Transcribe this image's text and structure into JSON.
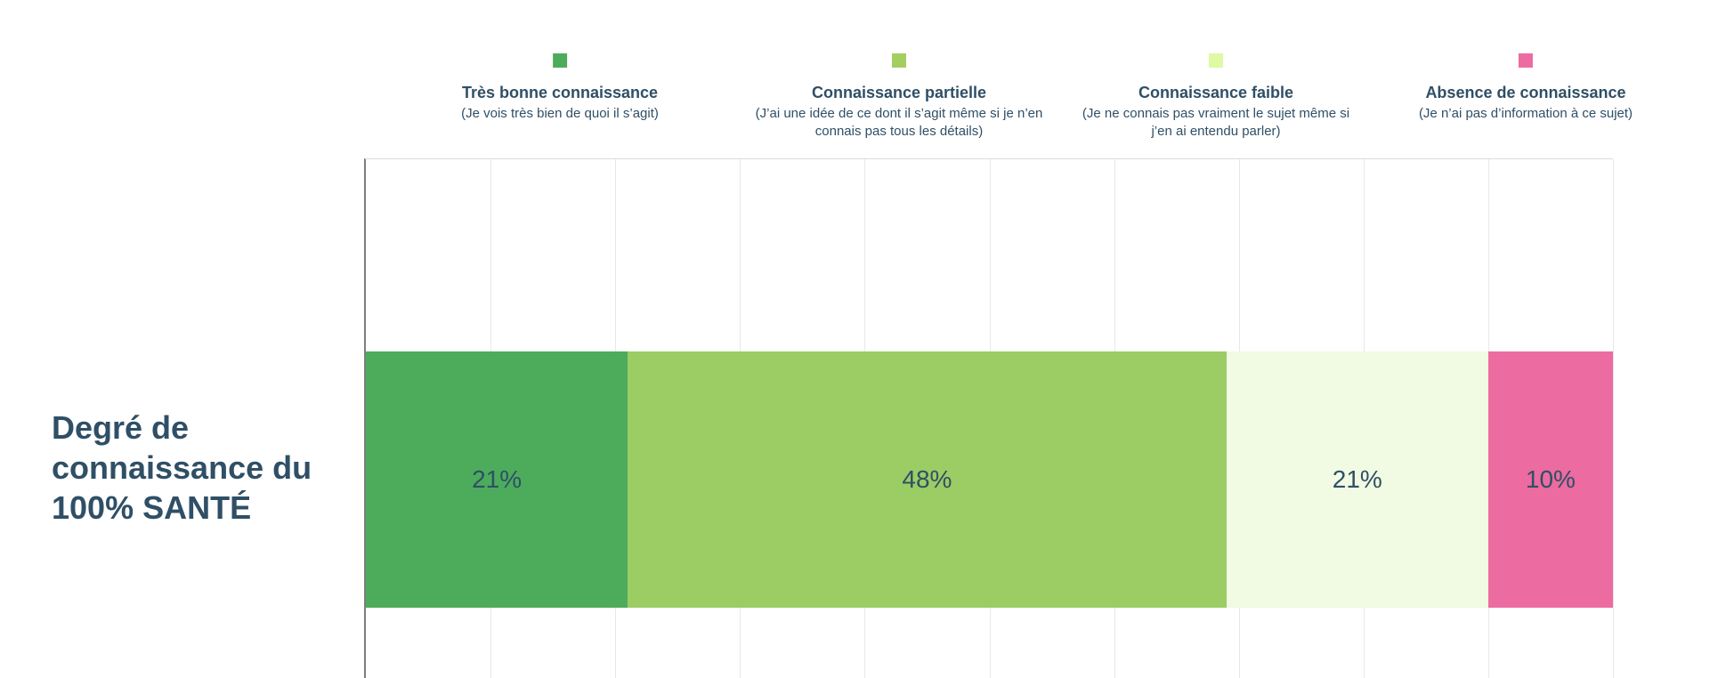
{
  "chart_data": {
    "type": "bar",
    "orientation": "horizontal-stacked",
    "title": "",
    "categories": [
      "Degré de connaissance du 100% SANTÉ"
    ],
    "series": [
      {
        "name": "Très bonne connaissance",
        "description": "(Je vois très bien de quoi il s’agit)",
        "values": [
          21
        ],
        "data_label": "21%",
        "color": "#4CAC5C",
        "swatch_color": "#4CAC5C"
      },
      {
        "name": "Connaissance partielle",
        "description": "(J’ai une idée de ce dont il s’agit même si je n’en connais pas tous les détails)",
        "values": [
          48
        ],
        "data_label": "48%",
        "color": "#9CCC64",
        "swatch_color": "#A3CE62"
      },
      {
        "name": "Connaissance faible",
        "description": "(Je ne connais pas vraiment le sujet même si j’en ai entendu parler)",
        "values": [
          21
        ],
        "data_label": "21%",
        "color": "#F1FAE2",
        "swatch_color": "#DEFAA3"
      },
      {
        "name": "Absence de connaissance",
        "description": "(Je n’ai pas d’information à ce sujet)",
        "values": [
          10
        ],
        "data_label": "10%",
        "color": "#EC6BA0",
        "swatch_color": "#EC6BA0"
      }
    ],
    "xlim": [
      0,
      100
    ],
    "x_tick_step": 10,
    "grid": "vertical",
    "legend_position": "top",
    "value_suffix": "%",
    "text_color": "#2F4F66",
    "axis_line_color": "#7E7E7E",
    "gridline_color": "#E8E8E8",
    "background_color": "#FFFFFF"
  }
}
